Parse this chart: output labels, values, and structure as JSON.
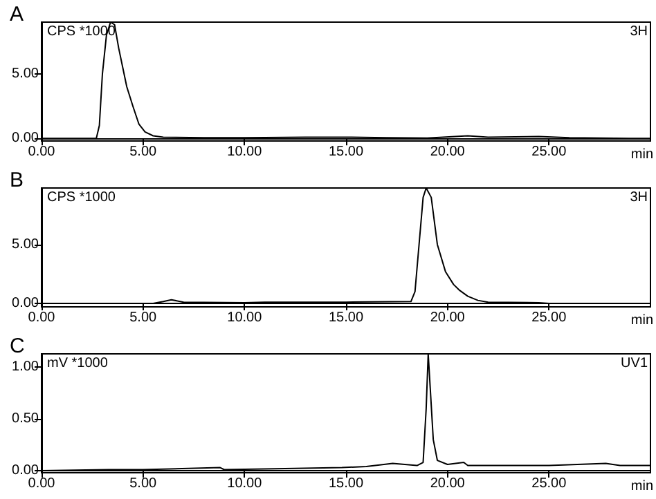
{
  "chart_data": [
    {
      "type": "line",
      "title": "A",
      "xlabel": "min",
      "annotations": [
        "CPS *1000",
        "3H"
      ],
      "color": "#000000",
      "xlim": [
        0,
        30
      ],
      "ylim": [
        -0.2,
        9
      ],
      "xticks": [
        {
          "value": 0,
          "label": "0.00"
        },
        {
          "value": 5,
          "label": "5.00"
        },
        {
          "value": 10,
          "label": "10.00"
        },
        {
          "value": 15,
          "label": "15.00"
        },
        {
          "value": 20,
          "label": "20.00"
        },
        {
          "value": 25,
          "label": "25.00"
        }
      ],
      "yticks": [
        {
          "value": 0,
          "label": "0.00"
        },
        {
          "value": 5,
          "label": "5.00"
        }
      ],
      "x": [
        0,
        2.7,
        2.85,
        3.0,
        3.2,
        3.4,
        3.6,
        3.8,
        4.0,
        4.2,
        4.5,
        4.8,
        5.1,
        5.5,
        6.0,
        8,
        10,
        13,
        15,
        17,
        19,
        21,
        22,
        24.5,
        26,
        29,
        30
      ],
      "values": [
        0,
        0,
        1,
        5,
        8,
        9,
        8.8,
        7,
        5.5,
        4,
        2.5,
        1.1,
        0.5,
        0.2,
        0.1,
        0.05,
        0.05,
        0.1,
        0.1,
        0.05,
        0.03,
        0.2,
        0.1,
        0.15,
        0.05,
        0,
        0
      ]
    },
    {
      "type": "line",
      "title": "B",
      "xlabel": "min",
      "annotations": [
        "CPS *1000",
        "3H"
      ],
      "color": "#000000",
      "xlim": [
        0,
        30
      ],
      "ylim": [
        -0.3,
        9.8
      ],
      "xticks": [
        {
          "value": 0,
          "label": "0.00"
        },
        {
          "value": 5,
          "label": "5.00"
        },
        {
          "value": 10,
          "label": "10.00"
        },
        {
          "value": 15,
          "label": "15.00"
        },
        {
          "value": 20,
          "label": "20.00"
        },
        {
          "value": 25,
          "label": "25.00"
        }
      ],
      "yticks": [
        {
          "value": 0,
          "label": "0.00"
        },
        {
          "value": 5,
          "label": "5.00"
        }
      ],
      "x": [
        0,
        5.5,
        6.0,
        6.4,
        7,
        10,
        11,
        15,
        18.2,
        18.4,
        18.6,
        18.8,
        18.95,
        19.2,
        19.5,
        19.9,
        20.3,
        20.6,
        21.0,
        21.5,
        22,
        24.5,
        25,
        30
      ],
      "values": [
        0,
        0,
        0.15,
        0.3,
        0.1,
        0.05,
        0.1,
        0.1,
        0.15,
        1,
        5,
        9,
        9.8,
        9,
        5,
        2.7,
        1.6,
        1.1,
        0.6,
        0.25,
        0.1,
        0.05,
        0,
        0
      ]
    },
    {
      "type": "line",
      "title": "C",
      "xlabel": "min",
      "annotations": [
        "mV *1000",
        "UV1"
      ],
      "color": "#000000",
      "xlim": [
        0,
        30
      ],
      "ylim": [
        -0.02,
        1.13
      ],
      "xticks": [
        {
          "value": 0,
          "label": "0.00"
        },
        {
          "value": 5,
          "label": "5.00"
        },
        {
          "value": 10,
          "label": "10.00"
        },
        {
          "value": 15,
          "label": "15.00"
        },
        {
          "value": 20,
          "label": "20.00"
        },
        {
          "value": 25,
          "label": "25.00"
        }
      ],
      "yticks": [
        {
          "value": 0,
          "label": "0.00"
        },
        {
          "value": 0.5,
          "label": "0.50"
        },
        {
          "value": 1,
          "label": "1.00"
        }
      ],
      "x": [
        0,
        3.3,
        5,
        8.8,
        9,
        12,
        14.8,
        16,
        17.3,
        18.5,
        18.8,
        18.95,
        19.05,
        19.15,
        19.3,
        19.5,
        20,
        20.8,
        21,
        25,
        27.8,
        28.5,
        30
      ],
      "values": [
        0,
        0.01,
        0.01,
        0.03,
        0.01,
        0.02,
        0.03,
        0.04,
        0.07,
        0.05,
        0.08,
        0.6,
        1.13,
        0.8,
        0.3,
        0.1,
        0.06,
        0.08,
        0.05,
        0.05,
        0.07,
        0.05,
        0.05
      ]
    }
  ]
}
